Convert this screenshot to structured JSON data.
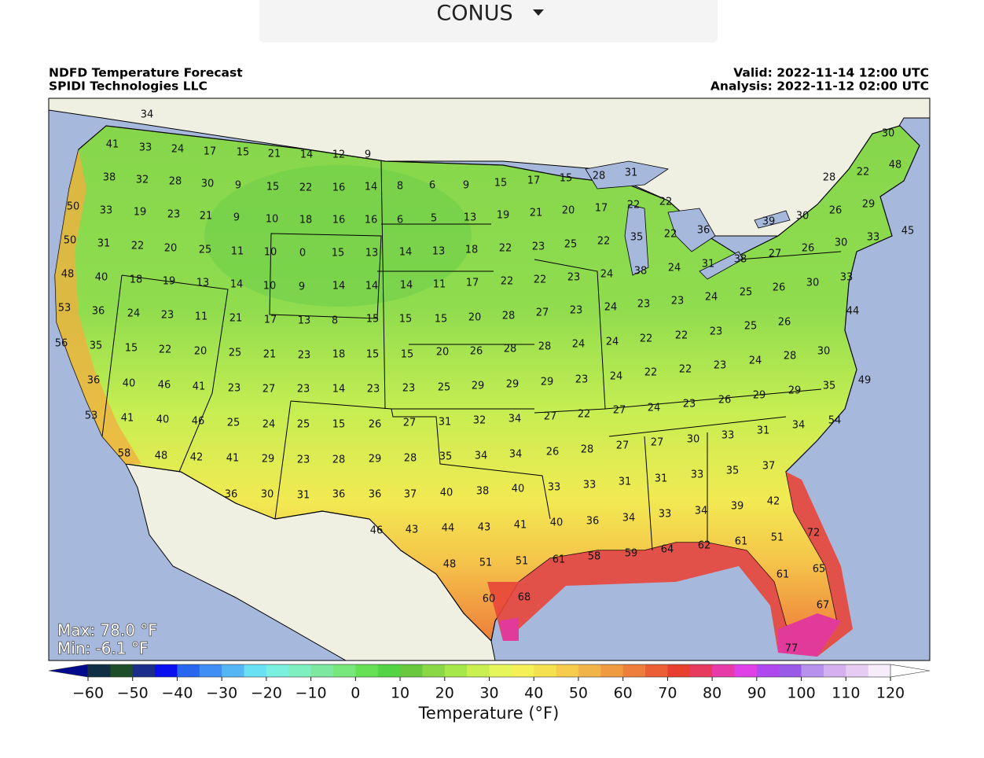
{
  "region_selector": {
    "label": "CONUS"
  },
  "header": {
    "title": "NDFD Temperature Forecast",
    "source": "SPIDI Technologies LLC",
    "valid": "Valid: 2022-11-14 12:00 UTC",
    "analysis": "Analysis: 2022-11-12 02:00 UTC"
  },
  "stats": {
    "max": "Max: 78.0 °F",
    "min": "Min: -6.1 °F"
  },
  "map_labels": [
    [
      34
    ],
    [
      41,
      33,
      24,
      17,
      15,
      21,
      14,
      12,
      9
    ],
    [
      38,
      32,
      28,
      30,
      9,
      15,
      22,
      16,
      14,
      8,
      6,
      9,
      15,
      17,
      15,
      28,
      31
    ],
    [
      50,
      33,
      19,
      23,
      21,
      9,
      10,
      18,
      16,
      16,
      6,
      5,
      13,
      19,
      21,
      20,
      17,
      22,
      22
    ],
    [
      50,
      31,
      22,
      20,
      25,
      11,
      10,
      0,
      15,
      13,
      14,
      13,
      18,
      22,
      23,
      25,
      22,
      35,
      22,
      36
    ],
    [
      48,
      40,
      18,
      19,
      13,
      14,
      10,
      9,
      14,
      14,
      14,
      11,
      17,
      22,
      22,
      23,
      24,
      38,
      24,
      31,
      38,
      27,
      26,
      30
    ],
    [
      53,
      36,
      24,
      23,
      11,
      21,
      17,
      13,
      8,
      15,
      15,
      15,
      20,
      28,
      27,
      23,
      24,
      23,
      23,
      24,
      25,
      26,
      30,
      33
    ],
    [
      56,
      35,
      15,
      22,
      20,
      25,
      21,
      23,
      18,
      15,
      15,
      20,
      26,
      28,
      28,
      24,
      24,
      22,
      22,
      23,
      25,
      26,
      44
    ],
    [
      36,
      40,
      46,
      41,
      23,
      27,
      23,
      14,
      23,
      23,
      25,
      29,
      29,
      29,
      23,
      24,
      22,
      22,
      23,
      24,
      28,
      30,
      49
    ],
    [
      53,
      41,
      40,
      46,
      25,
      24,
      25,
      15,
      26,
      27,
      31,
      32,
      34,
      27,
      22,
      27,
      24,
      23,
      26,
      29,
      29,
      35
    ],
    [
      58,
      48,
      42,
      41,
      29,
      23,
      28,
      29,
      28,
      35,
      34,
      34,
      26,
      28,
      27,
      27,
      30,
      33,
      31,
      34,
      54
    ],
    [
      36,
      30,
      31,
      36,
      36,
      37,
      40,
      38,
      40,
      33,
      33,
      31,
      31,
      33,
      35,
      37
    ],
    [
      46,
      43,
      44,
      43,
      41,
      40,
      36,
      34,
      33,
      34,
      39,
      42,
      72
    ],
    [
      48,
      51,
      51,
      61,
      58,
      59,
      64,
      62,
      61,
      51,
      65
    ],
    [
      60,
      68,
      61,
      67,
      77
    ],
    [
      39,
      30,
      26,
      29,
      45,
      22,
      28,
      30,
      48,
      33
    ]
  ],
  "colorbar": {
    "label": "Temperature (°F)",
    "lim": [
      -60,
      120
    ],
    "ticks": [
      {
        "value": -60,
        "label": "−60"
      },
      {
        "value": -50,
        "label": "−50"
      },
      {
        "value": -40,
        "label": "−40"
      },
      {
        "value": -30,
        "label": "−30"
      },
      {
        "value": -20,
        "label": "−20"
      },
      {
        "value": -10,
        "label": "−10"
      },
      0,
      10,
      20,
      30,
      40,
      50,
      60,
      70,
      80,
      90,
      100,
      110,
      120
    ],
    "under_color": "#000a8a",
    "over_color": "#ffffff",
    "colors": [
      "#0f2f45",
      "#1e4d2a",
      "#1b2f8a",
      "#0a0ff0",
      "#2866f0",
      "#3f8ef5",
      "#55b6f5",
      "#6ae0f5",
      "#7af0e0",
      "#7ef0c0",
      "#7de8a0",
      "#78e87c",
      "#66e055",
      "#52d445",
      "#6ac83f",
      "#8ad845",
      "#a6e84a",
      "#c8f050",
      "#e6f55a",
      "#f5f055",
      "#f5e050",
      "#f5cc4c",
      "#f0b448",
      "#f09a42",
      "#ee7e3c",
      "#ec5e34",
      "#e8402e",
      "#e83a5e",
      "#e83aa8",
      "#e040e8",
      "#b048f0",
      "#9a5ae8",
      "#b890ee",
      "#d4b0f0",
      "#e6ccf2",
      "#f6ecfa"
    ]
  }
}
